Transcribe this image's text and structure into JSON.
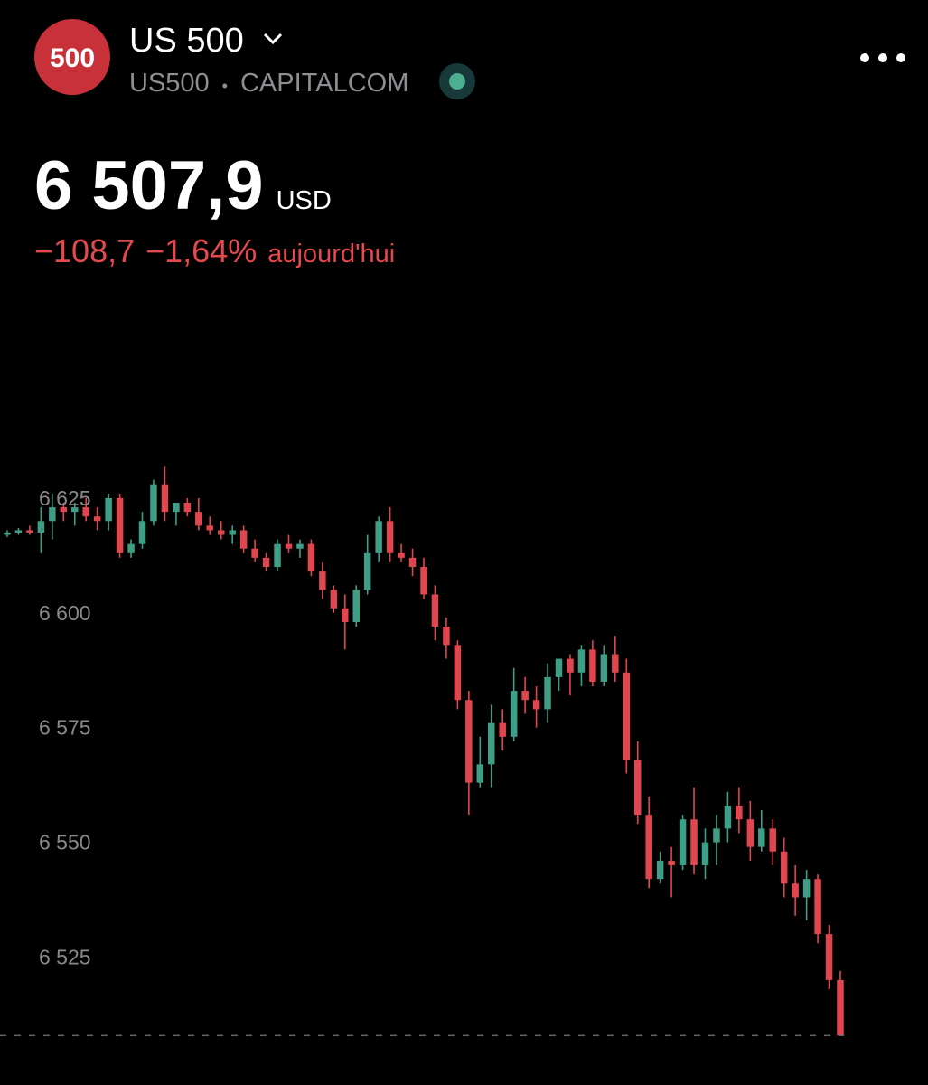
{
  "header": {
    "logo": "500",
    "title": "US 500",
    "symbol": "US500",
    "separator": "•",
    "exchange": "CAPITALCOM",
    "price": "6 507,9",
    "currency": "USD",
    "change": "−108,7",
    "change_pct": "−1,64%",
    "period": "aujourd'hui"
  },
  "chart_data": {
    "type": "candlestick",
    "up_color": "#3f9e86",
    "down_color": "#e0464f",
    "ylim": [
      6505,
      6637
    ],
    "yticks": [
      {
        "value": 6625,
        "label": "6 625"
      },
      {
        "value": 6600,
        "label": "6 600"
      },
      {
        "value": 6575,
        "label": "6 575"
      },
      {
        "value": 6550,
        "label": "6 550"
      },
      {
        "value": 6525,
        "label": "6 525"
      }
    ],
    "last_price": 6507.9,
    "open": [
      6617,
      6617.5,
      6618,
      6617.5,
      6620,
      6623,
      6622,
      6623,
      6621,
      6620,
      6625,
      6613,
      6615,
      6620,
      6628,
      6622,
      6624,
      6622,
      6619,
      6618,
      6617,
      6618,
      6614,
      6612,
      6610,
      6615,
      6614,
      6615,
      6609,
      6605,
      6601,
      6598,
      6605,
      6613,
      6620,
      6613,
      6612,
      6610,
      6604,
      6597,
      6593,
      6581,
      6563,
      6567,
      6576,
      6573,
      6583,
      6581,
      6579,
      6586,
      6590,
      6587,
      6592,
      6585,
      6591,
      6587,
      6568,
      6556,
      6542,
      6546,
      6545,
      6555,
      6545,
      6550,
      6553,
      6558,
      6555,
      6549,
      6553,
      6548,
      6541,
      6538,
      6542,
      6530,
      6520
    ],
    "high": [
      6618,
      6618.5,
      6619,
      6623,
      6626,
      6624,
      6624,
      6625,
      6623,
      6626,
      6626,
      6616,
      6622,
      6629,
      6632,
      6624,
      6625,
      6625,
      6621,
      6620,
      6619,
      6619,
      6616,
      6613,
      6616,
      6617,
      6616,
      6616,
      6611,
      6606,
      6604,
      6606,
      6617,
      6621,
      6623,
      6615,
      6614,
      6612,
      6606,
      6599,
      6594,
      6583,
      6573,
      6580,
      6579,
      6588,
      6586,
      6584,
      6589,
      6590,
      6591,
      6593,
      6594,
      6593,
      6595,
      6590,
      6572,
      6560,
      6548,
      6549,
      6556,
      6562,
      6553,
      6556,
      6561,
      6562,
      6559,
      6557,
      6555,
      6551,
      6545,
      6544,
      6543,
      6532,
      6522
    ],
    "low": [
      6616.5,
      6617,
      6617,
      6613,
      6616,
      6620,
      6619,
      6620,
      6618,
      6618,
      6612,
      6612,
      6614,
      6619,
      6620,
      6619,
      6621,
      6618,
      6617,
      6616,
      6615,
      6613,
      6611,
      6609,
      6609,
      6613,
      6612,
      6608,
      6603,
      6600,
      6592,
      6597,
      6604,
      6611,
      6611,
      6611,
      6608,
      6603,
      6594,
      6590,
      6579,
      6556,
      6562,
      6562,
      6570,
      6572,
      6578,
      6575,
      6576,
      6583,
      6582,
      6584,
      6584,
      6584,
      6585,
      6565,
      6554,
      6540,
      6541,
      6538,
      6544,
      6543,
      6542,
      6545,
      6550,
      6552,
      6546,
      6548,
      6545,
      6538,
      6534,
      6533,
      6528,
      6518,
      6507.9
    ],
    "close": [
      6617.5,
      6618,
      6617.5,
      6620,
      6623,
      6622,
      6623,
      6621,
      6620,
      6625,
      6613,
      6615,
      6620,
      6628,
      6622,
      6624,
      6622,
      6619,
      6618,
      6617,
      6618,
      6614,
      6612,
      6610,
      6615,
      6614,
      6615,
      6609,
      6605,
      6601,
      6598,
      6605,
      6613,
      6620,
      6613,
      6612,
      6610,
      6604,
      6597,
      6593,
      6581,
      6563,
      6567,
      6576,
      6573,
      6583,
      6581,
      6579,
      6586,
      6590,
      6587,
      6592,
      6585,
      6591,
      6587,
      6568,
      6556,
      6542,
      6546,
      6545,
      6555,
      6545,
      6550,
      6553,
      6558,
      6555,
      6549,
      6553,
      6548,
      6541,
      6538,
      6542,
      6530,
      6520,
      6507.9
    ]
  }
}
